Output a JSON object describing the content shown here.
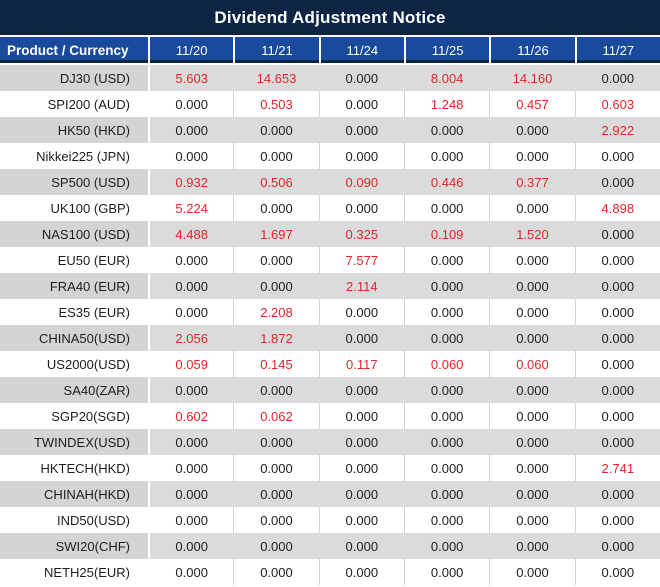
{
  "title": "Dividend Adjustment Notice",
  "colors": {
    "title_bg": "#0d2443",
    "header_bg": "#1a4a9c",
    "row_gray": "#dbdbdb",
    "row_gray_product": "#d4d4d4",
    "value_red": "#e2262b",
    "value_black": "#1e1e1e"
  },
  "table": {
    "product_header": "Product / Currency",
    "date_headers": [
      "11/20",
      "11/21",
      "11/24",
      "11/25",
      "11/26",
      "11/27"
    ],
    "rows": [
      {
        "product": "DJ30 (USD)",
        "values": [
          "5.603",
          "14.653",
          "0.000",
          "8.004",
          "14.160",
          "0.000"
        ],
        "red": [
          true,
          true,
          false,
          true,
          true,
          false
        ]
      },
      {
        "product": "SPI200 (AUD)",
        "values": [
          "0.000",
          "0.503",
          "0.000",
          "1.248",
          "0.457",
          "0.603"
        ],
        "red": [
          false,
          true,
          false,
          true,
          true,
          true
        ]
      },
      {
        "product": "HK50 (HKD)",
        "values": [
          "0.000",
          "0.000",
          "0.000",
          "0.000",
          "0.000",
          "2.922"
        ],
        "red": [
          false,
          false,
          false,
          false,
          false,
          true
        ]
      },
      {
        "product": "Nikkei225 (JPN)",
        "values": [
          "0.000",
          "0.000",
          "0.000",
          "0.000",
          "0.000",
          "0.000"
        ],
        "red": [
          false,
          false,
          false,
          false,
          false,
          false
        ]
      },
      {
        "product": "SP500 (USD)",
        "values": [
          "0.932",
          "0.506",
          "0.090",
          "0.446",
          "0.377",
          "0.000"
        ],
        "red": [
          true,
          true,
          true,
          true,
          true,
          false
        ]
      },
      {
        "product": "UK100 (GBP)",
        "values": [
          "5.224",
          "0.000",
          "0.000",
          "0.000",
          "0.000",
          "4.898"
        ],
        "red": [
          true,
          false,
          false,
          false,
          false,
          true
        ]
      },
      {
        "product": "NAS100 (USD)",
        "values": [
          "4.488",
          "1.697",
          "0.325",
          "0.109",
          "1.520",
          "0.000"
        ],
        "red": [
          true,
          true,
          true,
          true,
          true,
          false
        ]
      },
      {
        "product": "EU50 (EUR)",
        "values": [
          "0.000",
          "0.000",
          "7.577",
          "0.000",
          "0.000",
          "0.000"
        ],
        "red": [
          false,
          false,
          true,
          false,
          false,
          false
        ]
      },
      {
        "product": "FRA40 (EUR)",
        "values": [
          "0.000",
          "0.000",
          "2.114",
          "0.000",
          "0.000",
          "0.000"
        ],
        "red": [
          false,
          false,
          true,
          false,
          false,
          false
        ]
      },
      {
        "product": "ES35 (EUR)",
        "values": [
          "0.000",
          "2.208",
          "0.000",
          "0.000",
          "0.000",
          "0.000"
        ],
        "red": [
          false,
          true,
          false,
          false,
          false,
          false
        ]
      },
      {
        "product": "CHINA50(USD)",
        "values": [
          "2.056",
          "1.872",
          "0.000",
          "0.000",
          "0.000",
          "0.000"
        ],
        "red": [
          true,
          true,
          false,
          false,
          false,
          false
        ]
      },
      {
        "product": "US2000(USD)",
        "values": [
          "0.059",
          "0.145",
          "0.117",
          "0.060",
          "0.060",
          "0.000"
        ],
        "red": [
          true,
          true,
          true,
          true,
          true,
          false
        ]
      },
      {
        "product": "SA40(ZAR)",
        "values": [
          "0.000",
          "0.000",
          "0.000",
          "0.000",
          "0.000",
          "0.000"
        ],
        "red": [
          false,
          false,
          false,
          false,
          false,
          false
        ]
      },
      {
        "product": "SGP20(SGD)",
        "values": [
          "0.602",
          "0.062",
          "0.000",
          "0.000",
          "0.000",
          "0.000"
        ],
        "red": [
          true,
          true,
          false,
          false,
          false,
          false
        ]
      },
      {
        "product": "TWINDEX(USD)",
        "values": [
          "0.000",
          "0.000",
          "0.000",
          "0.000",
          "0.000",
          "0.000"
        ],
        "red": [
          false,
          false,
          false,
          false,
          false,
          false
        ]
      },
      {
        "product": "HKTECH(HKD)",
        "values": [
          "0.000",
          "0.000",
          "0.000",
          "0.000",
          "0.000",
          "2.741"
        ],
        "red": [
          false,
          false,
          false,
          false,
          false,
          true
        ]
      },
      {
        "product": "CHINAH(HKD)",
        "values": [
          "0.000",
          "0.000",
          "0.000",
          "0.000",
          "0.000",
          "0.000"
        ],
        "red": [
          false,
          false,
          false,
          false,
          false,
          false
        ]
      },
      {
        "product": "IND50(USD)",
        "values": [
          "0.000",
          "0.000",
          "0.000",
          "0.000",
          "0.000",
          "0.000"
        ],
        "red": [
          false,
          false,
          false,
          false,
          false,
          false
        ]
      },
      {
        "product": "SWI20(CHF)",
        "values": [
          "0.000",
          "0.000",
          "0.000",
          "0.000",
          "0.000",
          "0.000"
        ],
        "red": [
          false,
          false,
          false,
          false,
          false,
          false
        ]
      },
      {
        "product": "NETH25(EUR)",
        "values": [
          "0.000",
          "0.000",
          "0.000",
          "0.000",
          "0.000",
          "0.000"
        ],
        "red": [
          false,
          false,
          false,
          false,
          false,
          false
        ]
      }
    ]
  }
}
